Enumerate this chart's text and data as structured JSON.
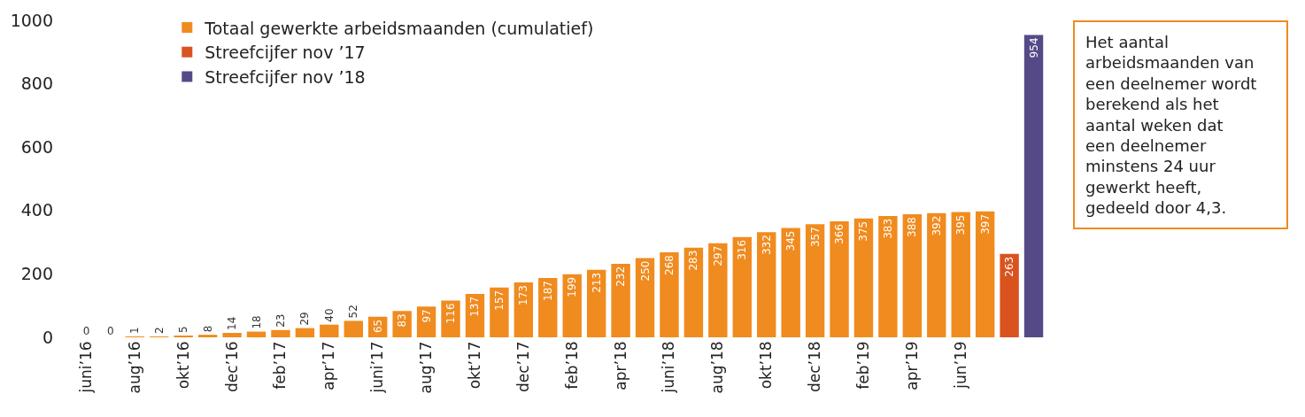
{
  "chart_data": {
    "type": "bar",
    "stacked": true,
    "data_labels": true,
    "legend": "top left",
    "categories": [
      "juni’16",
      null,
      "aug’16",
      null,
      "okt’16",
      null,
      "dec’16",
      null,
      "feb’17",
      null,
      "apr’17",
      null,
      "juni’17",
      null,
      "aug’17",
      null,
      "okt’17",
      null,
      "dec’17",
      null,
      "feb’18",
      null,
      "apr’18",
      null,
      "juni’18",
      null,
      "aug’18",
      null,
      "okt’18",
      null,
      "dec’18",
      null,
      "feb’19",
      null,
      "apr’19",
      null,
      "jun’19",
      null,
      null,
      null
    ],
    "ylim": [
      0,
      1000
    ],
    "yticks": [
      0,
      200,
      400,
      600,
      800,
      1000
    ],
    "series": [
      {
        "name": "Totaal gewerkte arbeidsmaanden (cumulatief)",
        "color": "#f08b1f",
        "values": [
          0,
          0,
          1,
          2,
          5,
          8,
          14,
          18,
          23,
          29,
          40,
          52,
          65,
          83,
          97,
          116,
          137,
          157,
          173,
          187,
          199,
          213,
          232,
          250,
          268,
          283,
          297,
          316,
          332,
          345,
          357,
          366,
          375,
          383,
          388,
          392,
          395,
          397,
          null,
          null
        ]
      },
      {
        "name": "Streefcijfer nov ’17",
        "color": "#d9531e",
        "values": [
          null,
          null,
          null,
          null,
          null,
          null,
          null,
          null,
          null,
          null,
          null,
          null,
          null,
          null,
          null,
          null,
          null,
          null,
          null,
          null,
          null,
          null,
          null,
          null,
          null,
          null,
          null,
          null,
          null,
          null,
          null,
          null,
          null,
          null,
          null,
          null,
          null,
          null,
          263,
          null
        ]
      },
      {
        "name": "Streefcijfer nov ’18",
        "color": "#554a87",
        "values": [
          null,
          null,
          null,
          null,
          null,
          null,
          null,
          null,
          null,
          null,
          null,
          null,
          null,
          null,
          null,
          null,
          null,
          null,
          null,
          null,
          null,
          null,
          null,
          null,
          null,
          null,
          null,
          null,
          null,
          null,
          null,
          null,
          null,
          null,
          null,
          null,
          null,
          null,
          null,
          954
        ]
      }
    ],
    "annotations": [
      "Het aantal arbeidsmaanden van een deelnemer wordt berekend als het aantal weken dat een deelnemer minstens 24 uur gewerkt heeft, gedeeld door 4,3."
    ]
  }
}
